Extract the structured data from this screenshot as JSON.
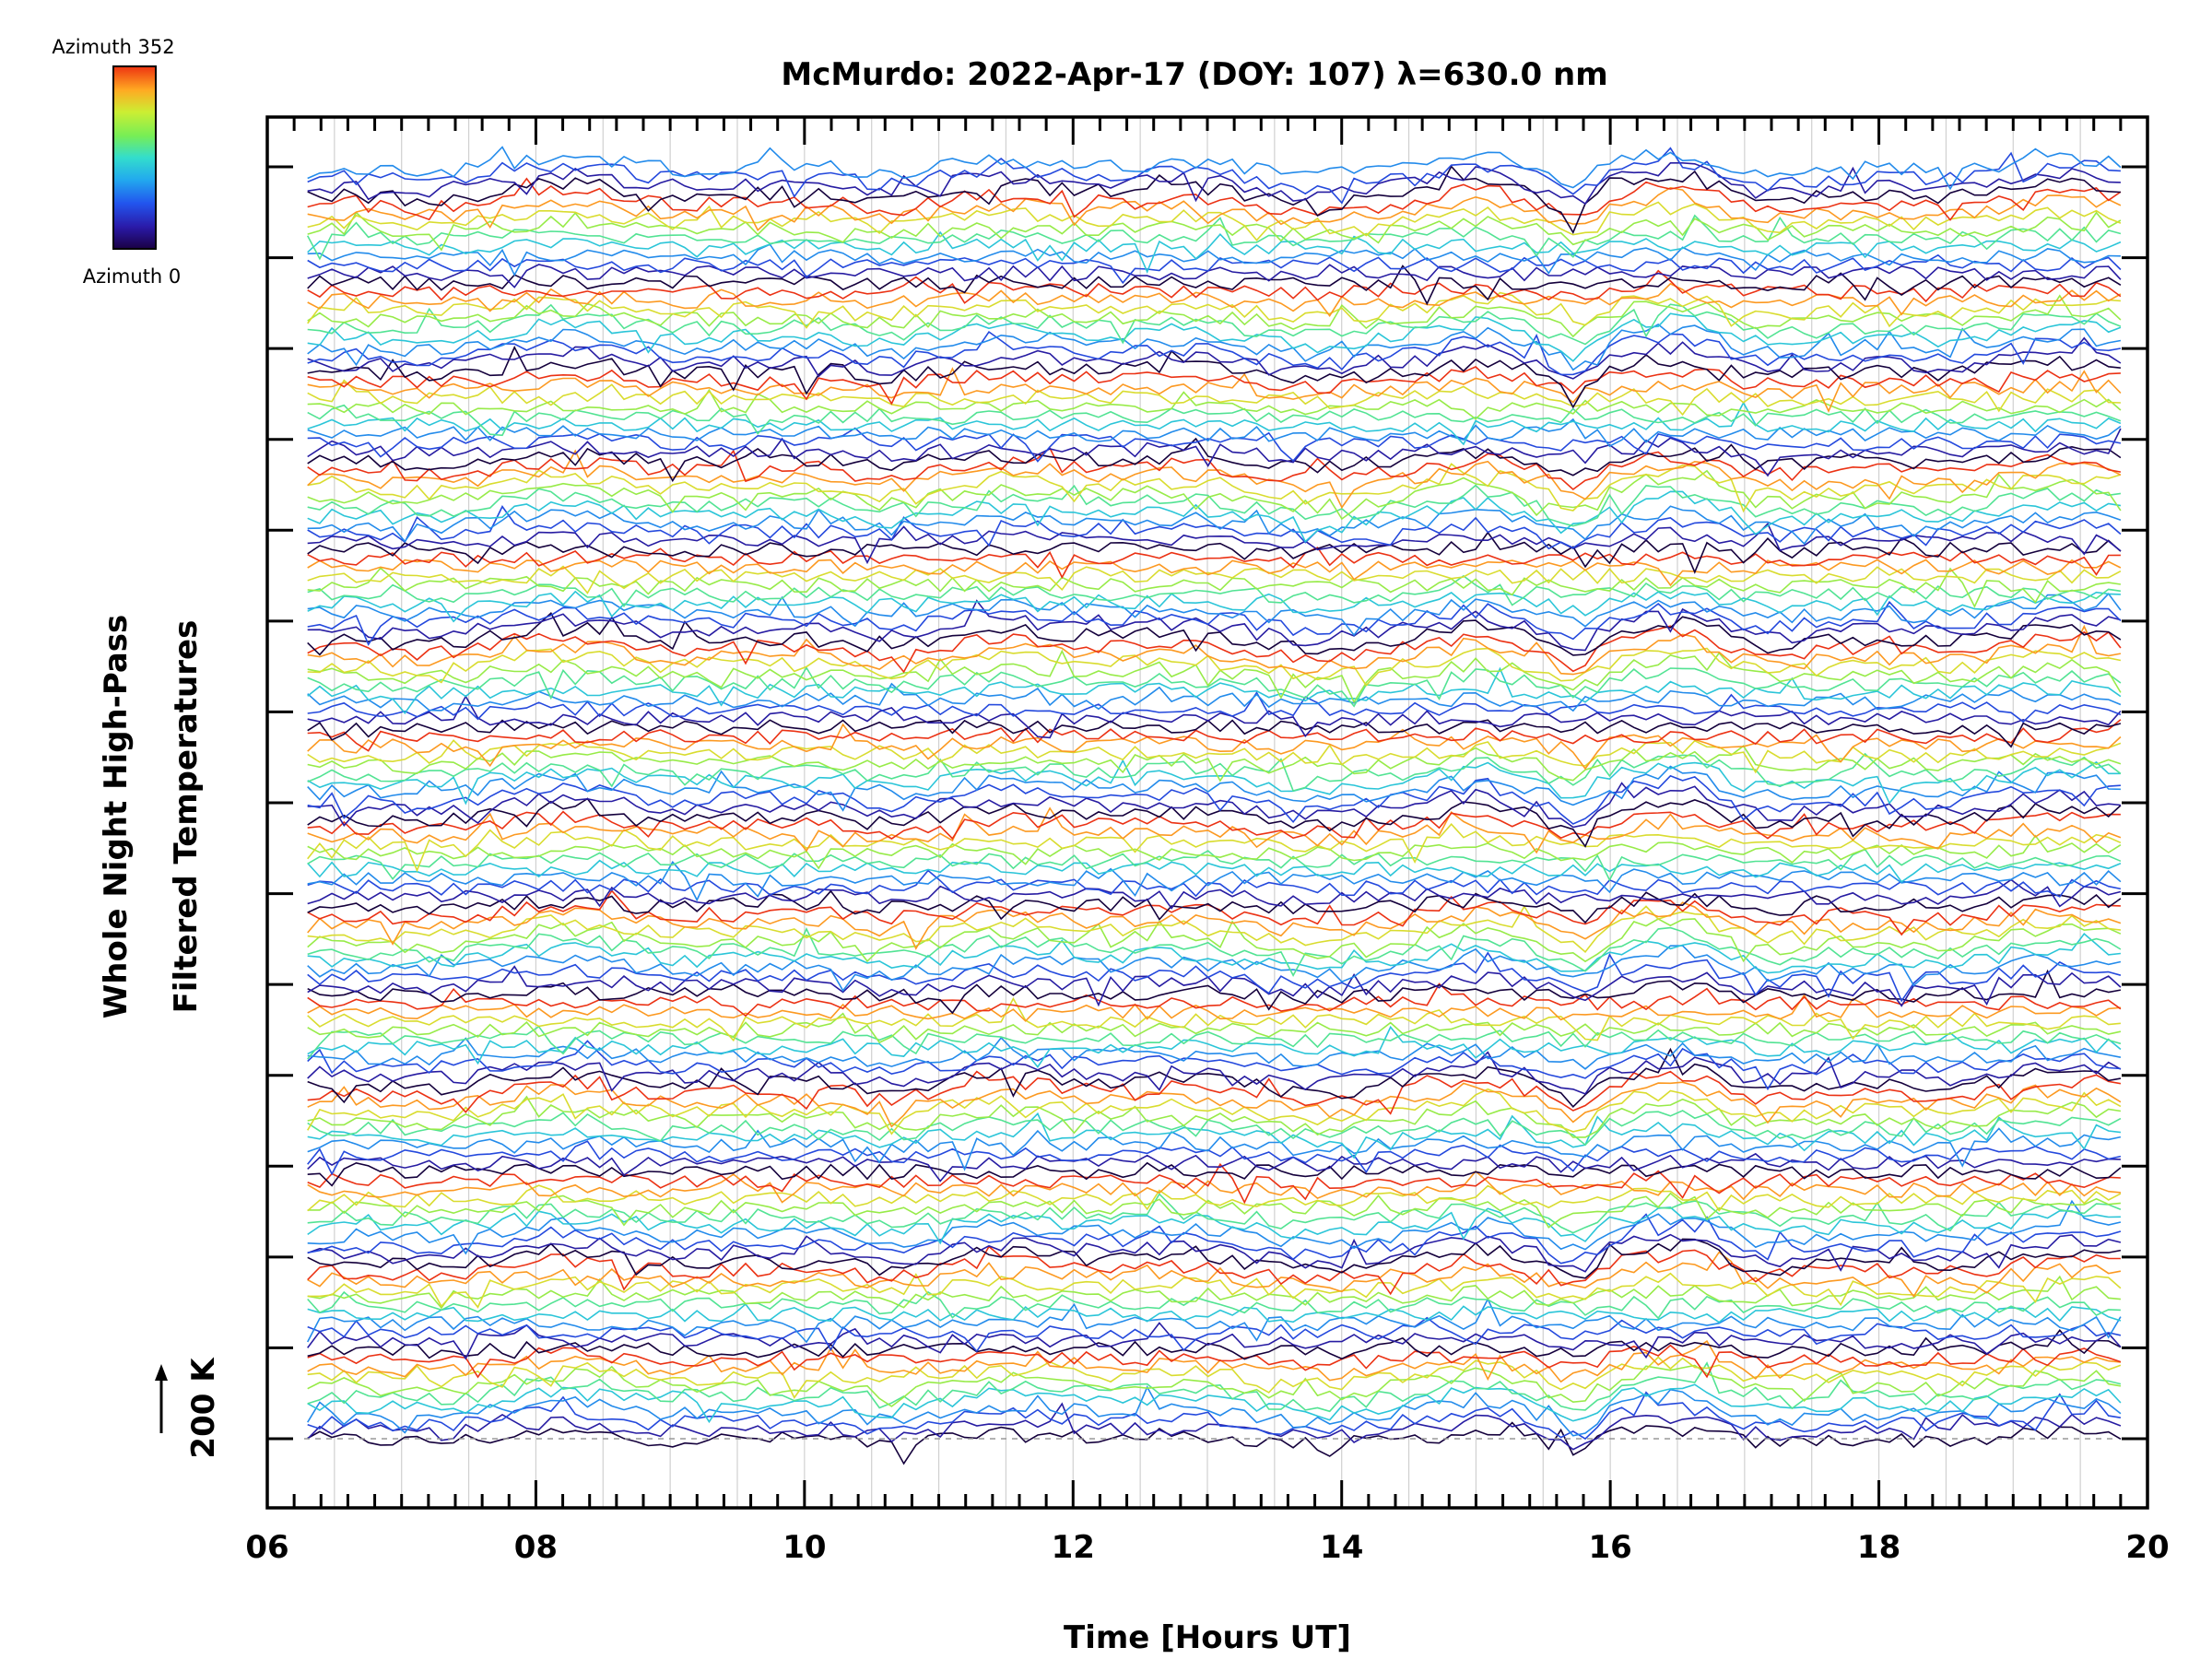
{
  "chart_data": {
    "type": "line",
    "title": "McMurdo: 2022-Apr-17 (DOY: 107) λ=630.0 nm",
    "xlabel": "Time [Hours UT]",
    "ylabel_line1": "Whole Night High-Pass",
    "ylabel_line2": "Filtered Temperatures",
    "scale_label": "200 K",
    "xlim": [
      6,
      20
    ],
    "xticks": [
      "06",
      "08",
      "10",
      "12",
      "14",
      "16",
      "18",
      "20"
    ],
    "data_x_range": [
      6.3,
      19.8
    ],
    "colorbar": {
      "top_label": "Azimuth 352",
      "bottom_label": "Azimuth 0",
      "colormap": "rainbow (dark blue → cyan → green → yellow → red)"
    },
    "grid": "vertical dotted lines every 0.5 h",
    "num_stacked_traces": 144,
    "num_panels": 14
  }
}
